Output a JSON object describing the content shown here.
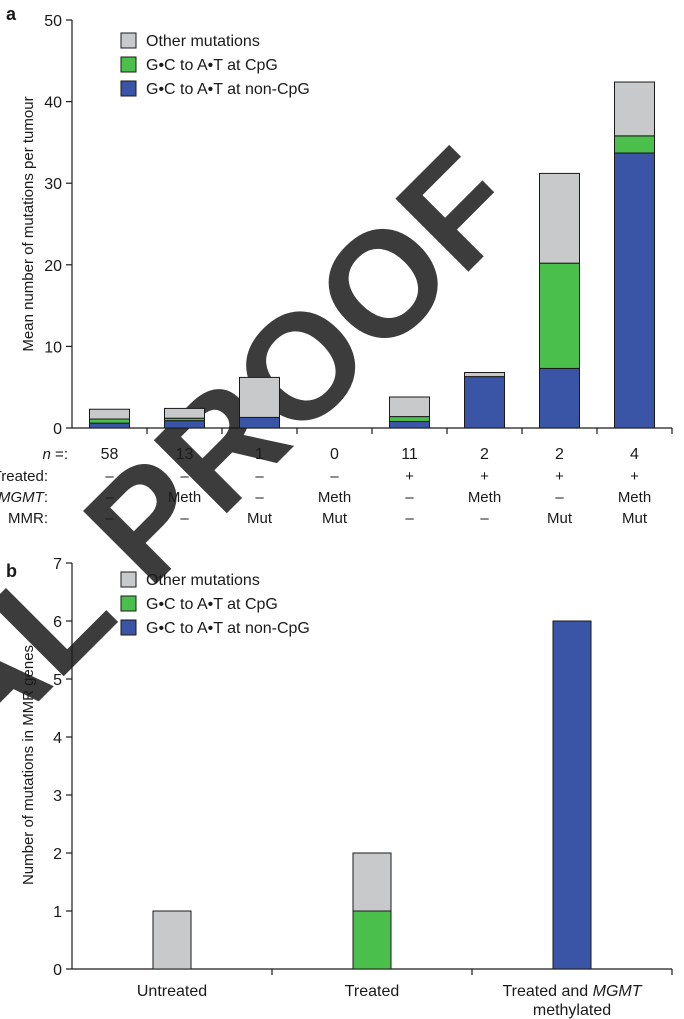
{
  "panel_a_letter": "a",
  "panel_b_letter": "b",
  "watermark": "AL PROOF",
  "legend": [
    {
      "label": "Other mutations",
      "color": "#c8c9cb"
    },
    {
      "label": "G•C to A•T at CpG",
      "color": "#4bbf4b"
    },
    {
      "label": "G•C to A•T at non-CpG",
      "color": "#3a55a6"
    }
  ],
  "chart_data": [
    {
      "type": "bar",
      "stacked": true,
      "panel": "a",
      "ylabel": "Mean number of mutations per tumour",
      "ylim": [
        0,
        50
      ],
      "yticks": [
        0,
        10,
        20,
        30,
        40,
        50
      ],
      "grid": false,
      "legend_position": "top-left",
      "categories": [
        "58",
        "13",
        "1",
        "0",
        "11",
        "2",
        "2",
        "4"
      ],
      "series": [
        {
          "name": "G•C to A•T at non-CpG",
          "color": "#3a55a6",
          "values": [
            0.6,
            0.9,
            1.3,
            0,
            0.8,
            6.3,
            7.3,
            33.7
          ]
        },
        {
          "name": "G•C to A•T at CpG",
          "color": "#4bbf4b",
          "values": [
            0.5,
            0.3,
            0,
            0,
            0.6,
            0,
            12.9,
            2.1
          ]
        },
        {
          "name": "Other mutations",
          "color": "#c8c9cb",
          "values": [
            1.2,
            1.2,
            4.9,
            0,
            2.4,
            0.5,
            11.0,
            6.6
          ]
        }
      ],
      "annotation_rows": [
        {
          "label": "n =:",
          "values": [
            "58",
            "13",
            "1",
            "0",
            "11",
            "2",
            "2",
            "4"
          ]
        },
        {
          "label": "Treated:",
          "values": [
            "–",
            "–",
            "–",
            "–",
            "+",
            "+",
            "+",
            "+"
          ]
        },
        {
          "label": "MGMT:",
          "values": [
            "–",
            "Meth",
            "–",
            "Meth",
            "–",
            "Meth",
            "–",
            "Meth"
          ]
        },
        {
          "label": "MMR:",
          "values": [
            "–",
            "–",
            "Mut",
            "Mut",
            "–",
            "–",
            "Mut",
            "Mut"
          ]
        }
      ]
    },
    {
      "type": "bar",
      "stacked": true,
      "panel": "b",
      "ylabel": "Number of mutations in MMR genes",
      "ylim": [
        0,
        7
      ],
      "yticks": [
        0,
        1,
        2,
        3,
        4,
        5,
        6,
        7
      ],
      "grid": false,
      "legend_position": "top-left",
      "categories": [
        "Untreated",
        "Treated",
        "Treated and MGMT methylated"
      ],
      "series": [
        {
          "name": "G•C to A•T at non-CpG",
          "color": "#3a55a6",
          "values": [
            0,
            0,
            6
          ]
        },
        {
          "name": "G•C to A•T at CpG",
          "color": "#4bbf4b",
          "values": [
            0,
            1,
            0
          ]
        },
        {
          "name": "Other mutations",
          "color": "#c8c9cb",
          "values": [
            1,
            1,
            0
          ]
        }
      ]
    }
  ]
}
